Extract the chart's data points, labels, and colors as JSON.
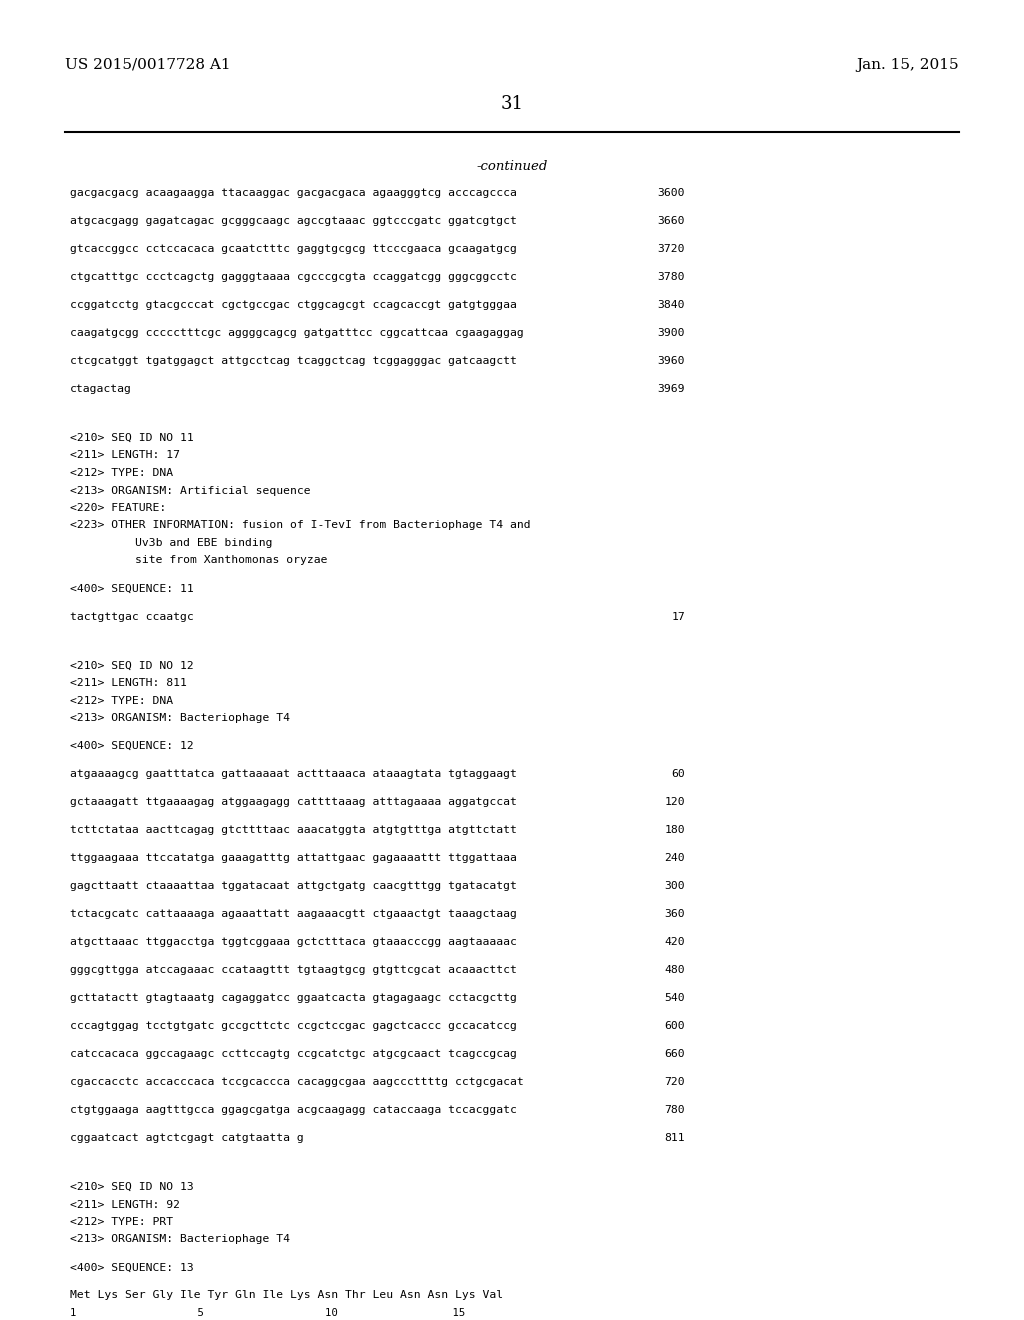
{
  "bg_color": "#ffffff",
  "header_left": "US 2015/0017728 A1",
  "header_right": "Jan. 15, 2015",
  "page_number": "31",
  "continued_label": "-continued",
  "content": [
    {
      "type": "seq_line",
      "text": "gacgacgacg acaagaagga ttacaaggac gacgacgaca agaagggtcg acccagccca",
      "num": "3600"
    },
    {
      "type": "seq_line",
      "text": "atgcacgagg gagatcagac gcgggcaagc agccgtaaac ggtcccgatc ggatcgtgct",
      "num": "3660"
    },
    {
      "type": "seq_line",
      "text": "gtcaccggcc cctccacaca gcaatctttc gaggtgcgcg ttcccgaaca gcaagatgcg",
      "num": "3720"
    },
    {
      "type": "seq_line",
      "text": "ctgcatttgc ccctcagctg gagggtaaaa cgcccgcgta ccaggatcgg gggcggcctc",
      "num": "3780"
    },
    {
      "type": "seq_line",
      "text": "ccggatcctg gtacgcccat cgctgccgac ctggcagcgt ccagcaccgt gatgtgggaa",
      "num": "3840"
    },
    {
      "type": "seq_line",
      "text": "caagatgcgg ccccctttcgc aggggcagcg gatgatttcc cggcattcaa cgaagaggag",
      "num": "3900"
    },
    {
      "type": "seq_line",
      "text": "ctcgcatggt tgatggagct attgcctcag tcaggctcag tcggagggac gatcaagctt",
      "num": "3960"
    },
    {
      "type": "seq_line",
      "text": "ctagactag",
      "num": "3969"
    },
    {
      "type": "blank"
    },
    {
      "type": "blank"
    },
    {
      "type": "meta",
      "text": "<210> SEQ ID NO 11"
    },
    {
      "type": "meta",
      "text": "<211> LENGTH: 17"
    },
    {
      "type": "meta",
      "text": "<212> TYPE: DNA"
    },
    {
      "type": "meta",
      "text": "<213> ORGANISM: Artificial sequence"
    },
    {
      "type": "meta",
      "text": "<220> FEATURE:"
    },
    {
      "type": "meta",
      "text": "<223> OTHER INFORMATION: fusion of I-TevI from Bacteriophage T4 and"
    },
    {
      "type": "meta_indent",
      "text": "Uv3b and EBE binding"
    },
    {
      "type": "meta_indent",
      "text": "site from Xanthomonas oryzae"
    },
    {
      "type": "blank"
    },
    {
      "type": "meta",
      "text": "<400> SEQUENCE: 11"
    },
    {
      "type": "blank"
    },
    {
      "type": "seq_line",
      "text": "tactgttgac ccaatgc",
      "num": "17"
    },
    {
      "type": "blank"
    },
    {
      "type": "blank"
    },
    {
      "type": "meta",
      "text": "<210> SEQ ID NO 12"
    },
    {
      "type": "meta",
      "text": "<211> LENGTH: 811"
    },
    {
      "type": "meta",
      "text": "<212> TYPE: DNA"
    },
    {
      "type": "meta",
      "text": "<213> ORGANISM: Bacteriophage T4"
    },
    {
      "type": "blank"
    },
    {
      "type": "meta",
      "text": "<400> SEQUENCE: 12"
    },
    {
      "type": "blank"
    },
    {
      "type": "seq_line",
      "text": "atgaaaagcg gaatttatca gattaaaaat actttaaaca ataaagtata tgtaggaagt",
      "num": "60"
    },
    {
      "type": "seq_line",
      "text": "gctaaagatt ttgaaaagag atggaagagg cattttaaag atttagaaaa aggatgccat",
      "num": "120"
    },
    {
      "type": "seq_line",
      "text": "tcttctataa aacttcagag gtcttttaac aaacatggta atgtgtttga atgttctatt",
      "num": "180"
    },
    {
      "type": "seq_line",
      "text": "ttggaagaaa ttccatatga gaaagatttg attattgaac gagaaaattt ttggattaaa",
      "num": "240"
    },
    {
      "type": "seq_line",
      "text": "gagcttaatt ctaaaattaa tggatacaat attgctgatg caacgtttgg tgatacatgt",
      "num": "300"
    },
    {
      "type": "seq_line",
      "text": "tctacgcatc cattaaaaga agaaattatt aagaaacgtt ctgaaactgt taaagctaag",
      "num": "360"
    },
    {
      "type": "seq_line",
      "text": "atgcttaaac ttggacctga tggtcggaaa gctctttaca gtaaacccgg aagtaaaaac",
      "num": "420"
    },
    {
      "type": "seq_line",
      "text": "gggcgttgga atccagaaac ccataagttt tgtaagtgcg gtgttcgcat acaaacttct",
      "num": "480"
    },
    {
      "type": "seq_line",
      "text": "gcttatactt gtagtaaatg cagaggatcc ggaatcacta gtagagaagc cctacgcttg",
      "num": "540"
    },
    {
      "type": "seq_line",
      "text": "cccagtggag tcctgtgatc gccgcttctc ccgctccgac gagctcaccc gccacatccg",
      "num": "600"
    },
    {
      "type": "seq_line",
      "text": "catccacaca ggccagaagc ccttccagtg ccgcatctgc atgcgcaact tcagccgcag",
      "num": "660"
    },
    {
      "type": "seq_line",
      "text": "cgaccacctc accacccaca tccgcaccca cacaggcgaa aagcccttttg cctgcgacat",
      "num": "720"
    },
    {
      "type": "seq_line",
      "text": "ctgtggaaga aagtttgcca ggagcgatga acgcaagagg cataccaaga tccacggatc",
      "num": "780"
    },
    {
      "type": "seq_line",
      "text": "cggaatcact agtctcgagt catgtaatta g",
      "num": "811"
    },
    {
      "type": "blank"
    },
    {
      "type": "blank"
    },
    {
      "type": "meta",
      "text": "<210> SEQ ID NO 13"
    },
    {
      "type": "meta",
      "text": "<211> LENGTH: 92"
    },
    {
      "type": "meta",
      "text": "<212> TYPE: PRT"
    },
    {
      "type": "meta",
      "text": "<213> ORGANISM: Bacteriophage T4"
    },
    {
      "type": "blank"
    },
    {
      "type": "meta",
      "text": "<400> SEQUENCE: 13"
    },
    {
      "type": "blank"
    },
    {
      "type": "seq_line_prt",
      "text": "Met Lys Ser Gly Ile Tyr Gln Ile Lys Asn Thr Leu Asn Asn Lys Val"
    },
    {
      "type": "seq_line_prt_num",
      "text": "1                   5                   10                  15"
    }
  ]
}
